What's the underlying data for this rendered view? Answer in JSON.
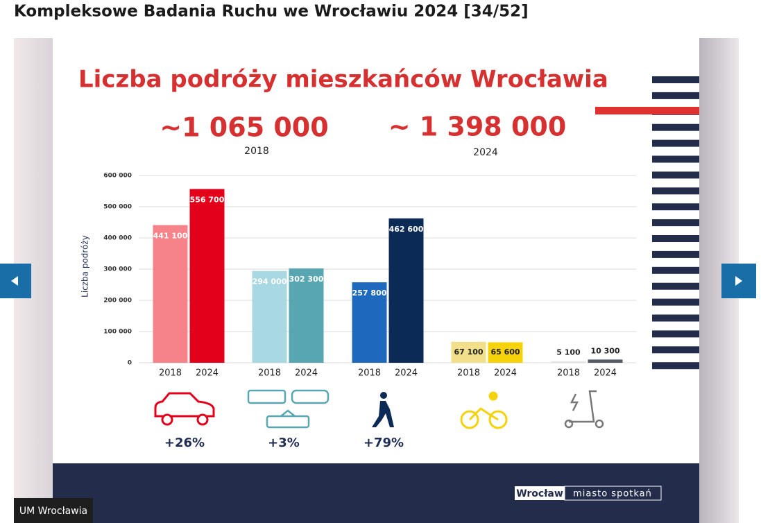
{
  "header": {
    "title": "Kompleksowe Badania Ruchu we Wrocławiu 2024 [34/52]"
  },
  "slide": {
    "title": "Liczba podróży mieszkańców Wrocławia",
    "totals": [
      {
        "value": "~1 065 000",
        "year": "2018"
      },
      {
        "value": "~ 1 398 000",
        "year": "2024"
      }
    ],
    "logo": {
      "city": "Wrocław",
      "slogan": "miasto spotkań"
    }
  },
  "caption": "UM Wrocławia",
  "chart_data": {
    "type": "bar",
    "y_label": "Liczba podróży",
    "categories": [
      null,
      null,
      null,
      null,
      null
    ],
    "changes": [
      "+26%",
      "+3%",
      "+79%",
      null,
      null
    ],
    "series": [
      {
        "name": "2018",
        "colors": [
          "#f7838a",
          "#a8d8e2",
          "#1e69bd",
          "#f2df8a",
          "#e4e4e4"
        ],
        "values": [
          441100,
          294000,
          257800,
          67100,
          5100
        ],
        "value_labels": [
          "441 100",
          "294 000",
          "257 800",
          "67 100",
          "5 100"
        ]
      },
      {
        "name": "2024",
        "colors": [
          "#e2001a",
          "#58a6b1",
          "#0b2a55",
          "#f5d20a",
          "#555a66"
        ],
        "values": [
          556700,
          302300,
          462600,
          65600,
          10300
        ],
        "value_labels": [
          "556 700",
          "302 300",
          "462 600",
          "65 600",
          "10 300"
        ]
      }
    ],
    "ylim": [
      0,
      600000
    ],
    "yticks": [
      0,
      {
        "value": 100000,
        "label": "100 000"
      },
      {
        "value": 200000,
        "label": "200 000"
      },
      {
        "value": 300000,
        "label": "300 000"
      },
      {
        "value": 400000,
        "label": "400 000"
      },
      {
        "value": 500000,
        "label": "500 000"
      },
      {
        "value": 600000,
        "label": "600 000"
      }
    ],
    "grid": true
  }
}
